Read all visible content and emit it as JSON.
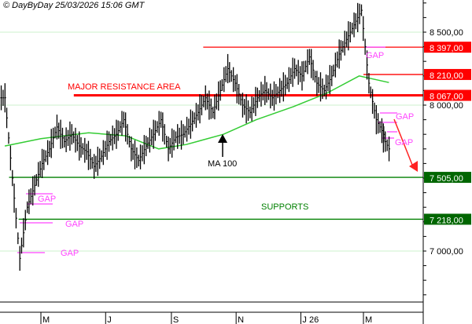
{
  "header": {
    "copyright": "© DayByDay 25/03/2026  15:06 GMT"
  },
  "chart_data": {
    "type": "line",
    "title": "",
    "ylim": [
      6660,
      8720
    ],
    "grid": true,
    "y_ticks": [
      {
        "value": 8500,
        "label": "8 500,00"
      },
      {
        "value": 8000,
        "label": "8 000,00"
      },
      {
        "value": 7000,
        "label": "7 000,00"
      }
    ],
    "x_ticks": [
      {
        "date": "2025-05-01",
        "label": "M"
      },
      {
        "date": "2025-07-01",
        "label": "J"
      },
      {
        "date": "2025-09-01",
        "label": "S"
      },
      {
        "date": "2025-11-01",
        "label": "N"
      },
      {
        "date": "2026-01-01",
        "label": "J 26"
      },
      {
        "date": "2026-03-01",
        "label": "M"
      }
    ],
    "price_series": {
      "dates": [
        "2025-03-28",
        "2025-04-04",
        "2025-04-11",
        "2025-04-18",
        "2025-04-25",
        "2025-05-02",
        "2025-05-09",
        "2025-05-16",
        "2025-05-23",
        "2025-05-30",
        "2025-06-06",
        "2025-06-13",
        "2025-06-20",
        "2025-06-27",
        "2025-07-04",
        "2025-07-11",
        "2025-07-18",
        "2025-07-25",
        "2025-08-01",
        "2025-08-08",
        "2025-08-15",
        "2025-08-22",
        "2025-08-29",
        "2025-09-05",
        "2025-09-12",
        "2025-09-19",
        "2025-09-26",
        "2025-10-03",
        "2025-10-10",
        "2025-10-17",
        "2025-10-24",
        "2025-10-31",
        "2025-11-07",
        "2025-11-14",
        "2025-11-21",
        "2025-11-28",
        "2025-12-05",
        "2025-12-12",
        "2025-12-19",
        "2025-12-26",
        "2026-01-02",
        "2026-01-09",
        "2026-01-16",
        "2026-01-23",
        "2026-01-30",
        "2026-02-06",
        "2026-02-13",
        "2026-02-20",
        "2026-02-27",
        "2026-03-06",
        "2026-03-13",
        "2026-03-20",
        "2026-03-25"
      ],
      "close": [
        8050,
        7500,
        6950,
        7300,
        7450,
        7600,
        7700,
        7850,
        7750,
        7800,
        7720,
        7680,
        7580,
        7650,
        7750,
        7800,
        7900,
        7700,
        7620,
        7720,
        7800,
        7900,
        7700,
        7780,
        7800,
        7870,
        7950,
        8050,
        7950,
        8100,
        8250,
        8150,
        8000,
        7950,
        8050,
        8100,
        8050,
        8100,
        8150,
        8250,
        8200,
        8330,
        8150,
        8100,
        8200,
        8350,
        8450,
        8550,
        8650,
        8150,
        7900,
        7800,
        7700
      ],
      "color": "#000000"
    },
    "ma_series": {
      "name": "MA 100",
      "dates": [
        "2025-03-28",
        "2025-05-01",
        "2025-06-15",
        "2025-07-20",
        "2025-08-20",
        "2025-09-15",
        "2025-10-20",
        "2025-11-20",
        "2025-12-25",
        "2026-01-25",
        "2026-02-25",
        "2026-03-25"
      ],
      "values": [
        7720,
        7770,
        7810,
        7790,
        7700,
        7730,
        7800,
        7900,
        7990,
        8080,
        8200,
        8155
      ],
      "color": "#33cc33"
    },
    "levels": [
      {
        "value": 8397,
        "label": "8 397,00",
        "color": "#ff0000",
        "from": "2025-10-01",
        "box": "#ff0000"
      },
      {
        "value": 8210,
        "label": "8 210,00",
        "color": "#ff0000",
        "from": "2026-03-01",
        "box": "#ff0000"
      },
      {
        "value": 8067,
        "label": "8 067,00",
        "color": "#ff0000",
        "from": "2025-06-01",
        "box": "#ff0000",
        "thick": true
      },
      {
        "value": 7505,
        "label": "7 505,00",
        "color": "#008000",
        "from": "2025-04-01",
        "box": "#006600"
      },
      {
        "value": 7218,
        "label": "7 218,00",
        "color": "#008000",
        "from": "2025-04-10",
        "box": "#006600"
      }
    ],
    "annotations": {
      "resistance": "MAJOR RESISTANCE AREA",
      "supports": "SUPPORTS",
      "ma_label": "MA 100",
      "gap": "GAP"
    },
    "colors": {
      "resistance": "#ff0000",
      "support": "#008000",
      "gap": "#ff44ff",
      "grid": "#ccf0cc"
    }
  }
}
